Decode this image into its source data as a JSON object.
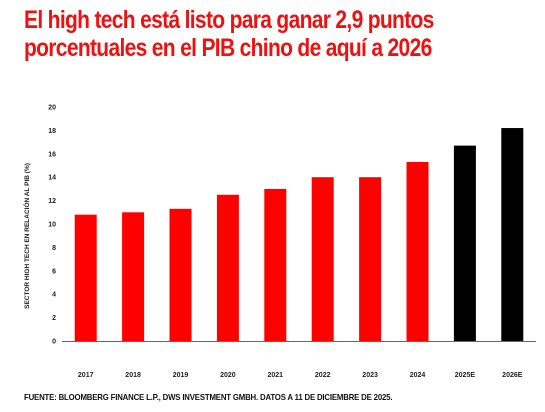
{
  "title_lines": [
    "El high tech está listo para ganar 2,9 puntos",
    "porcentuales en el PIB chino de aquí a 2026"
  ],
  "source": "FUENTE: BLOOMBERG FINANCE L.P., DWS INVESTMENT GMBH. DATOS A 11 DE DICIEMBRE DE 2025.",
  "colors": {
    "title": "#ee1111",
    "actual": "#ff0000",
    "estimate": "#000000"
  },
  "chart_data": {
    "type": "bar",
    "title": "El high tech está listo para ganar 2,9 puntos porcentuales en el PIB chino de aquí a 2026",
    "xlabel": "",
    "ylabel": "SECTOR HIGH TECH EN RELACIÓN AL PIB (%)",
    "ylim": [
      0,
      20
    ],
    "yticks": [
      0,
      2,
      4,
      6,
      8,
      10,
      12,
      14,
      16,
      18,
      20
    ],
    "grid": false,
    "categories": [
      "2017",
      "2018",
      "2019",
      "2020",
      "2021",
      "2022",
      "2023",
      "2024",
      "2025E",
      "2026E"
    ],
    "values": [
      10.8,
      11.0,
      11.3,
      12.5,
      13.0,
      14.0,
      14.0,
      15.3,
      16.7,
      18.2
    ],
    "bar_colors": [
      "#ff0000",
      "#ff0000",
      "#ff0000",
      "#ff0000",
      "#ff0000",
      "#ff0000",
      "#ff0000",
      "#ff0000",
      "#000000",
      "#000000"
    ]
  }
}
